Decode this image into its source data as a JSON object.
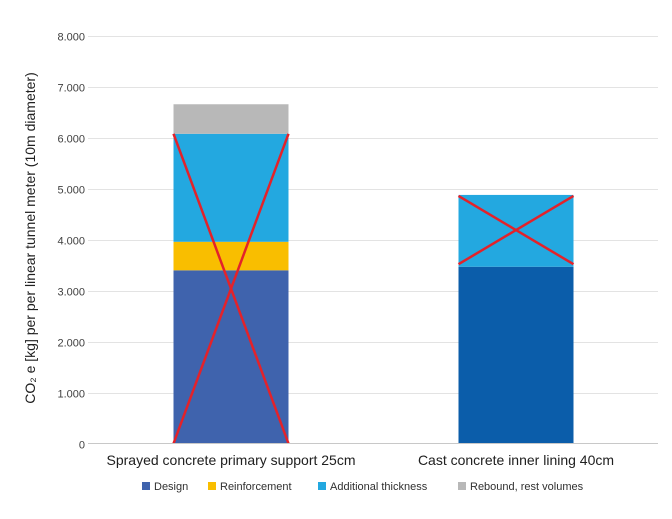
{
  "chart_data": {
    "type": "bar",
    "stacked": true,
    "categories": [
      "Sprayed concrete primary support 25cm",
      "Cast concrete inner lining 40cm"
    ],
    "series": [
      {
        "name": "Design",
        "values": [
          3400,
          3470
        ],
        "color": "#3F63AD"
      },
      {
        "name": "Reinforcement",
        "values": [
          560,
          0
        ],
        "color": "#F9BE00"
      },
      {
        "name": "Additional thickness",
        "values": [
          2120,
          1410
        ],
        "color": "#23A8E0"
      },
      {
        "name": "Rebound, rest volumes",
        "values": [
          580,
          0
        ],
        "color": "#B8B8B8"
      }
    ],
    "bar_color_overrides": [
      {
        "series": "Design",
        "category_index": 1,
        "color": "#0B5DAA"
      }
    ],
    "crosses": [
      {
        "category_index": 0,
        "from_y": 0,
        "to_y": 6080,
        "color": "#E3222A"
      },
      {
        "category_index": 1,
        "from_y": 3520,
        "to_y": 4860,
        "color": "#E3222A"
      }
    ],
    "yticks": [
      0,
      1000,
      2000,
      3000,
      4000,
      5000,
      6000,
      7000,
      8000
    ],
    "ytick_labels": [
      "0",
      "1.000",
      "2.000",
      "3.000",
      "4.000",
      "5.000",
      "6.000",
      "7.000",
      "8.000"
    ],
    "ylim": [
      0,
      8000
    ],
    "ylabel": "CO₂ e [kg] per per linear tunnel meter (10m diameter)",
    "xlabel": "",
    "title": "",
    "grid": true,
    "legend_position": "bottom"
  }
}
